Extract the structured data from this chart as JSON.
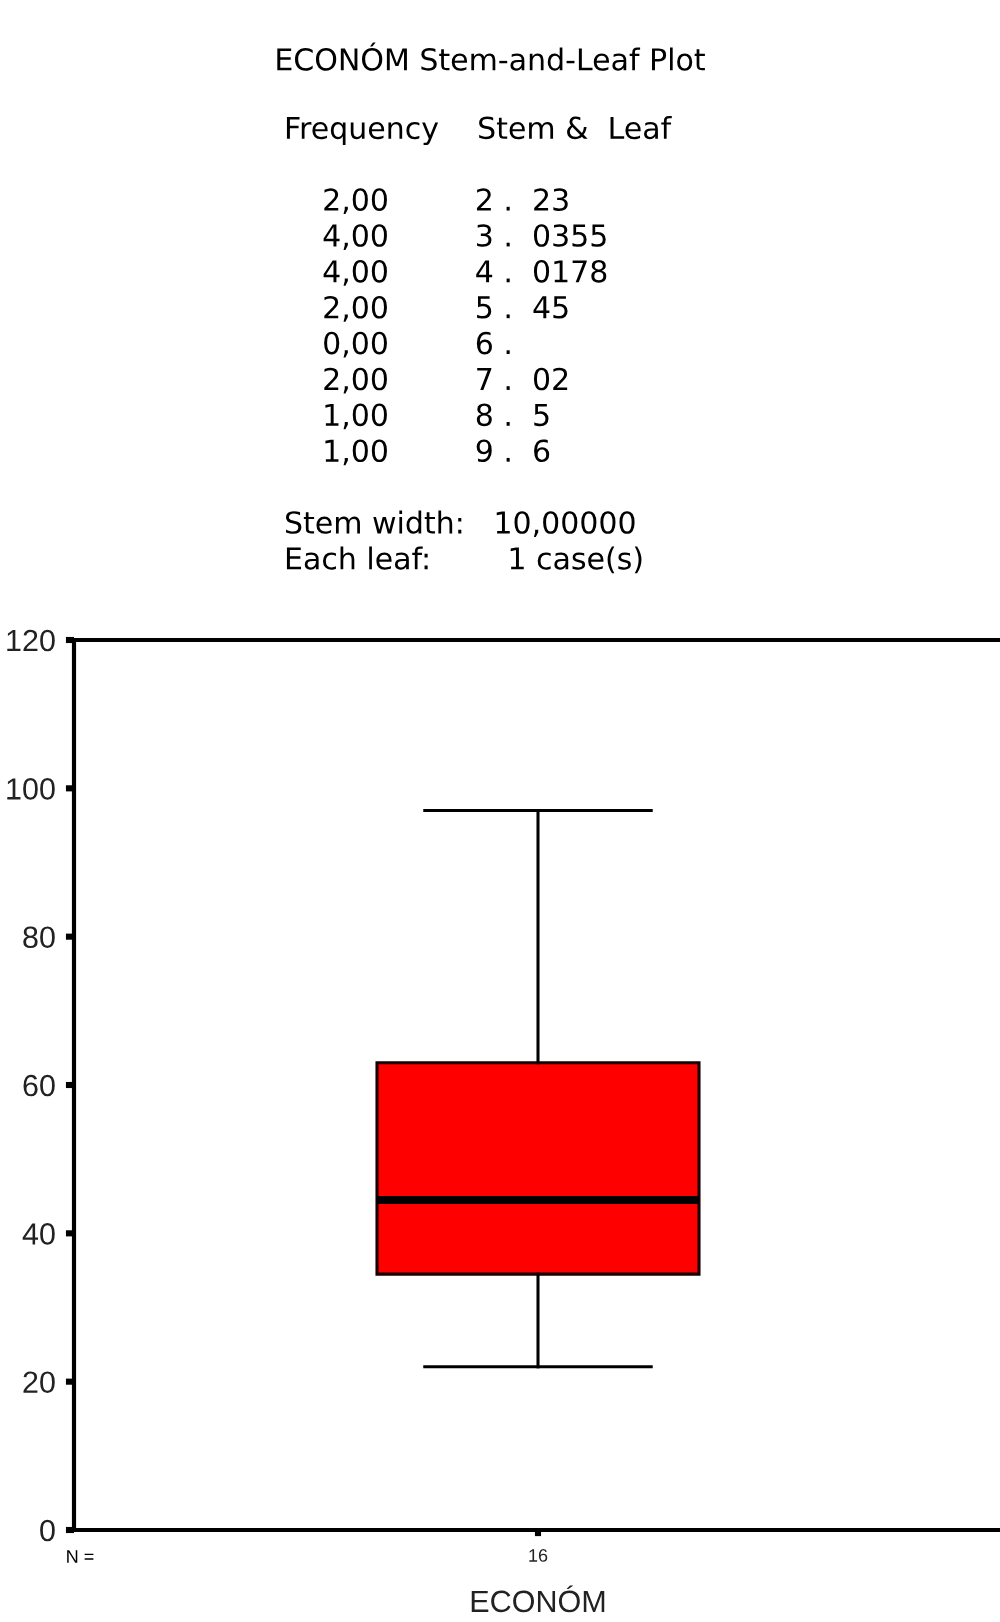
{
  "chart_data": {
    "type": "box",
    "title": "ECONÓM Stem-and-Leaf Plot",
    "xlabel": "ECONÓM",
    "categories": [
      "16"
    ],
    "series": [
      {
        "color": "#ff0000",
        "boxes": [
          {
            "low": 22,
            "q1": 34.5,
            "median": 44.5,
            "q3": 63,
            "high": 97
          }
        ]
      }
    ],
    "ylim": [
      0,
      120
    ],
    "yticks": [
      0,
      20,
      40,
      60,
      80,
      100,
      120
    ],
    "annotations": [
      "Frequency    Stem &  Leaf\n\n    2,00         2 .  23\n    4,00         3 .  0355\n    4,00         4 .  0178\n    2,00         5 .  45\n    0,00         6 .\n    2,00         7 .  02\n    1,00         8 .  5\n    1,00         9 .  6\n\nStem width:   10,00000\nEach leaf:        1 case(s)",
      "N ="
    ]
  }
}
